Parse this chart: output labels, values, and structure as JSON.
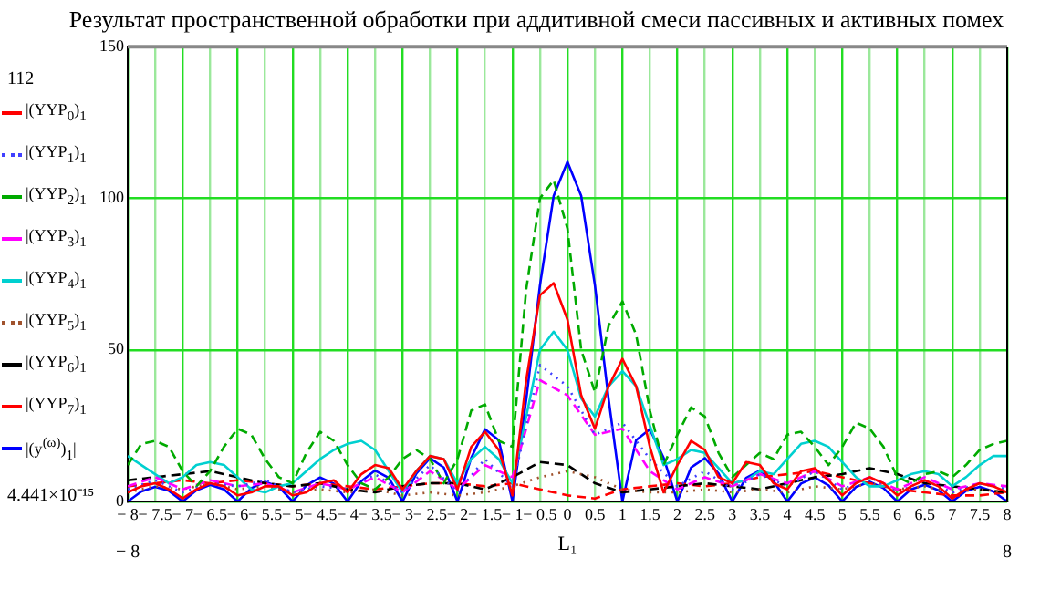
{
  "chart_data": {
    "type": "line",
    "title": "Результат пространственной обработки при аддитивной смеси пассивных и активных помех",
    "xlabel": "L₁",
    "x": [
      -8,
      -7.75,
      -7.5,
      -7.25,
      -7,
      -6.75,
      -6.5,
      -6.25,
      -6,
      -5.75,
      -5.5,
      -5.25,
      -5,
      -4.75,
      -4.5,
      -4.25,
      -4,
      -3.75,
      -3.5,
      -3.25,
      -3,
      -2.75,
      -2.5,
      -2.25,
      -2,
      -1.75,
      -1.5,
      -1.25,
      -1,
      -0.75,
      -0.5,
      -0.25,
      0,
      0.25,
      0.5,
      0.75,
      1,
      1.25,
      1.5,
      1.75,
      2,
      2.25,
      2.5,
      2.75,
      3,
      3.25,
      3.5,
      3.75,
      4,
      4.25,
      4.5,
      4.75,
      5,
      5.25,
      5.5,
      5.75,
      6,
      6.25,
      6.5,
      6.75,
      7,
      7.25,
      7.5,
      7.75,
      8
    ],
    "series": [
      {
        "name": "|(YYP$_{0}$)$_{1}$|",
        "color": "#ff0000",
        "line_style": "solid",
        "values": [
          3,
          5,
          6,
          4,
          1,
          4,
          6,
          5,
          2,
          3,
          5,
          5,
          2,
          3,
          6,
          7,
          3,
          9,
          12,
          11,
          4,
          10,
          15,
          14,
          4,
          18,
          23,
          17,
          2,
          40,
          68,
          72,
          60,
          35,
          24,
          38,
          47,
          38,
          18,
          3,
          12,
          20,
          17,
          8,
          6,
          13,
          12,
          6,
          4,
          10,
          11,
          7,
          2,
          6,
          8,
          6,
          2,
          5,
          7,
          5,
          1,
          4,
          6,
          5,
          3
        ]
      },
      {
        "name": "|(YYP$_{1}$)$_{1}$|",
        "color": "#4040ff",
        "line_style": "dotted",
        "x": [
          -8,
          -7.5,
          -7,
          -6.5,
          -6,
          -5.5,
          -5,
          -4.5,
          -4,
          -3.5,
          -3,
          -2.5,
          -2,
          -1.5,
          -1,
          -0.5,
          0,
          0.5,
          1,
          1.5,
          2,
          2.5,
          3,
          3.5,
          4,
          4.5,
          5,
          5.5,
          6,
          6.5,
          7,
          7.5,
          8
        ],
        "values": [
          4,
          7,
          3,
          6,
          5,
          7,
          3,
          5,
          4,
          9,
          3,
          12,
          3,
          14,
          5,
          45,
          38,
          22,
          26,
          14,
          5,
          10,
          4,
          9,
          5,
          10,
          4,
          8,
          3,
          7,
          3,
          6,
          4
        ]
      },
      {
        "name": "|(YYP$_{2}$)$_{1}$|",
        "color": "#00aa00",
        "line_style": "dashed",
        "values": [
          12,
          19,
          20,
          18,
          10,
          5,
          10,
          18,
          24,
          22,
          14,
          8,
          6,
          16,
          23,
          20,
          12,
          6,
          4,
          8,
          14,
          17,
          14,
          6,
          14,
          30,
          32,
          20,
          18,
          70,
          100,
          106,
          90,
          50,
          36,
          58,
          66,
          55,
          30,
          12,
          22,
          31,
          28,
          16,
          8,
          12,
          16,
          14,
          22,
          23,
          18,
          12,
          18,
          26,
          24,
          18,
          8,
          6,
          9,
          10,
          8,
          12,
          17,
          19,
          20
        ]
      },
      {
        "name": "|(YYP$_{3}$)$_{1}$|",
        "color": "#ff00ff",
        "line_style": "dashed",
        "x": [
          -8,
          -7.5,
          -7,
          -6.5,
          -6,
          -5.5,
          -5,
          -4.5,
          -4,
          -3.5,
          -3,
          -2.5,
          -2,
          -1.5,
          -1,
          -0.5,
          0,
          0.5,
          1,
          1.5,
          2,
          2.5,
          3,
          3.5,
          4,
          4.5,
          5,
          5.5,
          6,
          6.5,
          7,
          7.5,
          8
        ],
        "values": [
          5,
          8,
          4,
          7,
          5,
          6,
          3,
          6,
          4,
          8,
          3,
          10,
          4,
          12,
          8,
          40,
          35,
          22,
          24,
          10,
          4,
          8,
          5,
          9,
          6,
          10,
          5,
          8,
          4,
          8,
          4,
          6,
          5
        ]
      },
      {
        "name": "|(YYP$_{4}$)$_{1}$|",
        "color": "#00d0d0",
        "line_style": "solid",
        "values": [
          15,
          12,
          9,
          6,
          8,
          12,
          13,
          12,
          8,
          4,
          3,
          5,
          6,
          10,
          14,
          17,
          19,
          20,
          17,
          10,
          3,
          10,
          15,
          14,
          6,
          14,
          18,
          14,
          6,
          28,
          50,
          56,
          50,
          34,
          28,
          38,
          43,
          38,
          25,
          12,
          14,
          17,
          16,
          11,
          6,
          7,
          10,
          9,
          14,
          19,
          20,
          18,
          13,
          8,
          5,
          5,
          7,
          9,
          10,
          9,
          5,
          8,
          12,
          15,
          15
        ]
      },
      {
        "name": "|(YYP$_{5}$)$_{1}$|",
        "color": "#a0522d",
        "line_style": "dotted",
        "x": [
          -8,
          -7.5,
          -7,
          -6.5,
          -6,
          -5.5,
          -5,
          -4.5,
          -4,
          -3.5,
          -3,
          -2.5,
          -2,
          -1.5,
          -1,
          -0.5,
          0,
          0.5,
          1,
          1.5,
          2,
          2.5,
          3,
          3.5,
          4,
          4.5,
          5,
          5.5,
          6,
          6.5,
          7,
          7.5,
          8
        ],
        "values": [
          3,
          5,
          4,
          6,
          4,
          5,
          3,
          4,
          3,
          4,
          2,
          3,
          2,
          3,
          5,
          8,
          10,
          8,
          4,
          3,
          3,
          4,
          3,
          4,
          3,
          5,
          4,
          6,
          4,
          5,
          3,
          4,
          3
        ]
      },
      {
        "name": "|(YYP$_{6}$)$_{1}$|",
        "color": "#000000",
        "line_style": "dashed",
        "x": [
          -8,
          -7.5,
          -7,
          -6.5,
          -6,
          -5.5,
          -5,
          -4.5,
          -4,
          -3.5,
          -3,
          -2.5,
          -2,
          -1.5,
          -1,
          -0.5,
          0,
          0.5,
          1,
          1.5,
          2,
          2.5,
          3,
          3.5,
          4,
          4.5,
          5,
          5.5,
          6,
          6.5,
          7,
          7.5,
          8
        ],
        "values": [
          7,
          8,
          9,
          10,
          8,
          6,
          5,
          6,
          4,
          3,
          5,
          6,
          6,
          4,
          8,
          13,
          12,
          6,
          3,
          4,
          5,
          6,
          5,
          4,
          6,
          8,
          9,
          11,
          9,
          6,
          5,
          4,
          3
        ]
      },
      {
        "name": "|(YYP$_{7}$)$_{1}$|",
        "color": "#ff0000",
        "line_style": "dashed",
        "x": [
          -8,
          -7.5,
          -7,
          -6.5,
          -6,
          -5.5,
          -5,
          -4.5,
          -4,
          -3.5,
          -3,
          -2.5,
          -2,
          -1.5,
          -1,
          -0.5,
          0,
          0.5,
          1,
          1.5,
          2,
          2.5,
          3,
          3.5,
          4,
          4.5,
          5,
          5.5,
          6,
          6.5,
          7,
          7.5,
          8
        ],
        "values": [
          5,
          6,
          7,
          6,
          7,
          6,
          5,
          6,
          5,
          4,
          5,
          6,
          6,
          5,
          6,
          4,
          2,
          1,
          4,
          5,
          6,
          5,
          6,
          8,
          9,
          10,
          8,
          6,
          4,
          3,
          2,
          2,
          3
        ]
      },
      {
        "name": "|(y$^{(ω)}$)$_{1}$|",
        "color": "#0000ff",
        "line_style": "solid",
        "values": [
          0,
          3.3,
          4.8,
          3.5,
          0,
          3.7,
          5.5,
          4,
          0,
          4.4,
          6.5,
          4.8,
          0,
          5.3,
          7.9,
          5.9,
          0,
          6.7,
          10.2,
          7.8,
          0,
          9.2,
          14.3,
          11.2,
          0,
          14.4,
          23.8,
          20.2,
          0,
          33.6,
          71.3,
          100.8,
          112,
          100.8,
          71.3,
          33.6,
          0,
          20.2,
          23.8,
          14.4,
          0,
          11.2,
          14.3,
          9.2,
          0,
          7.8,
          10.2,
          6.7,
          0,
          5.9,
          7.9,
          5.3,
          0,
          4.8,
          6.5,
          4.4,
          0,
          4,
          5.5,
          3.7,
          0,
          3.5,
          4.8,
          3.3,
          0
        ]
      }
    ],
    "xlim": [
      -8,
      8
    ],
    "xticks": [
      {
        "value": -8,
        "label": "− 8"
      },
      {
        "value": -7.5,
        "label": "− 7.5"
      },
      {
        "value": -7,
        "label": "− 7"
      },
      {
        "value": -6.5,
        "label": "− 6.5"
      },
      {
        "value": -6,
        "label": "− 6"
      },
      {
        "value": -5.5,
        "label": "− 5.5"
      },
      {
        "value": -5,
        "label": "− 5"
      },
      {
        "value": -4.5,
        "label": "− 4.5"
      },
      {
        "value": -4,
        "label": "− 4"
      },
      {
        "value": -3.5,
        "label": "− 3.5"
      },
      {
        "value": -3,
        "label": "− 3"
      },
      {
        "value": -2.5,
        "label": "− 2.5"
      },
      {
        "value": -2,
        "label": "− 2"
      },
      {
        "value": -1.5,
        "label": "− 1.5"
      },
      {
        "value": -1,
        "label": "− 1"
      },
      {
        "value": -0.5,
        "label": "− 0.5"
      },
      0,
      0.5,
      1,
      1.5,
      2,
      2.5,
      3,
      3.5,
      4,
      4.5,
      5,
      5.5,
      6,
      6.5,
      7,
      7.5,
      8
    ],
    "ylim": [
      0,
      150
    ],
    "yticks": [
      0,
      50,
      100,
      150
    ],
    "grid": true,
    "legend": "left",
    "marker": "none",
    "annotations": [
      "112",
      "4.441×10⁻¹⁵",
      "− 8",
      "8"
    ]
  }
}
